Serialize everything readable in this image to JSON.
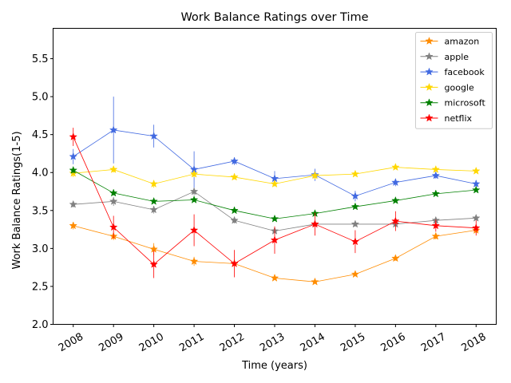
{
  "chart_data": {
    "type": "line",
    "title": "Work Balance Ratings over Time",
    "xlabel": "Time (years)",
    "ylabel": "Work Balance Ratings(1-5)",
    "x": [
      2008,
      2009,
      2010,
      2011,
      2012,
      2013,
      2014,
      2015,
      2016,
      2017,
      2018
    ],
    "x_tick_labels": [
      "2008",
      "2009",
      "2010",
      "2011",
      "2012",
      "2013",
      "2014",
      "2015",
      "2016",
      "2017",
      "2018"
    ],
    "xlim": [
      2007.5,
      2018.5
    ],
    "ylim": [
      2.0,
      5.9
    ],
    "y_ticks": [
      2.0,
      2.5,
      3.0,
      3.5,
      4.0,
      4.5,
      5.0,
      5.5
    ],
    "y_tick_labels": [
      "2.0",
      "2.5",
      "3.0",
      "3.5",
      "4.0",
      "4.5",
      "5.0",
      "5.5"
    ],
    "grid": false,
    "legend_position": "top-right",
    "marker": "star",
    "series": [
      {
        "name": "amazon",
        "color": "#ff8c00",
        "values": [
          3.3,
          3.16,
          2.99,
          2.83,
          2.8,
          2.61,
          2.56,
          2.66,
          2.87,
          3.16,
          3.24
        ],
        "errors": [
          0.05,
          0.05,
          0.08,
          0.06,
          0.03,
          0.02,
          0.02,
          0.02,
          0.03,
          0.04,
          0.04
        ]
      },
      {
        "name": "apple",
        "color": "#808080",
        "values": [
          3.58,
          3.62,
          3.51,
          3.75,
          3.37,
          3.23,
          3.32,
          3.32,
          3.32,
          3.37,
          3.4
        ],
        "errors": [
          0.04,
          0.06,
          0.05,
          0.05,
          0.04,
          0.03,
          0.03,
          0.03,
          0.04,
          0.03,
          0.03
        ]
      },
      {
        "name": "facebook",
        "color": "#4169e1",
        "values": [
          4.21,
          4.56,
          4.48,
          4.04,
          4.15,
          3.92,
          3.97,
          3.69,
          3.87,
          3.96,
          3.85
        ],
        "errors": [
          0.1,
          0.44,
          0.15,
          0.24,
          0.05,
          0.1,
          0.08,
          0.07,
          0.05,
          0.04,
          0.05
        ]
      },
      {
        "name": "google",
        "color": "#ffd700",
        "values": [
          3.99,
          4.04,
          3.85,
          3.98,
          3.94,
          3.85,
          3.96,
          3.98,
          4.07,
          4.04,
          4.02
        ],
        "errors": [
          0.05,
          0.04,
          0.05,
          0.04,
          0.03,
          0.03,
          0.05,
          0.02,
          0.02,
          0.02,
          0.02
        ]
      },
      {
        "name": "microsoft",
        "color": "#008000",
        "values": [
          4.03,
          3.73,
          3.62,
          3.64,
          3.5,
          3.39,
          3.46,
          3.55,
          3.63,
          3.72,
          3.77
        ],
        "errors": [
          0.04,
          0.03,
          0.02,
          0.02,
          0.02,
          0.02,
          0.02,
          0.02,
          0.02,
          0.02,
          0.02
        ]
      },
      {
        "name": "netflix",
        "color": "#ff0000",
        "values": [
          4.47,
          3.28,
          2.79,
          3.24,
          2.8,
          3.11,
          3.32,
          3.09,
          3.36,
          3.3,
          3.27
        ],
        "errors": [
          0.12,
          0.15,
          0.18,
          0.21,
          0.18,
          0.18,
          0.15,
          0.15,
          0.13,
          0.08,
          0.1
        ]
      }
    ]
  }
}
